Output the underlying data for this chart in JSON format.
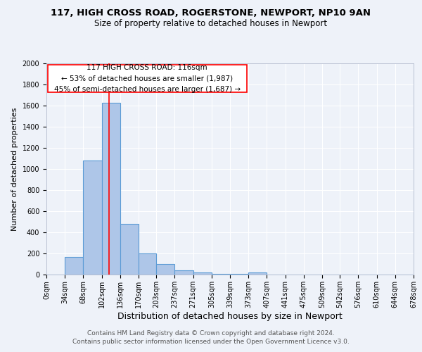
{
  "title1": "117, HIGH CROSS ROAD, ROGERSTONE, NEWPORT, NP10 9AN",
  "title2": "Size of property relative to detached houses in Newport",
  "xlabel": "Distribution of detached houses by size in Newport",
  "ylabel": "Number of detached properties",
  "footnote1": "Contains HM Land Registry data © Crown copyright and database right 2024.",
  "footnote2": "Contains public sector information licensed under the Open Government Licence v3.0.",
  "bin_edges": [
    0,
    34,
    68,
    102,
    136,
    170,
    203,
    237,
    271,
    305,
    339,
    373,
    407,
    441,
    475,
    509,
    542,
    576,
    610,
    644,
    678
  ],
  "bin_labels": [
    "0sqm",
    "34sqm",
    "68sqm",
    "102sqm",
    "136sqm",
    "170sqm",
    "203sqm",
    "237sqm",
    "271sqm",
    "305sqm",
    "339sqm",
    "373sqm",
    "407sqm",
    "441sqm",
    "475sqm",
    "509sqm",
    "542sqm",
    "576sqm",
    "610sqm",
    "644sqm",
    "678sqm"
  ],
  "bar_heights": [
    0,
    170,
    1080,
    1630,
    480,
    200,
    100,
    40,
    20,
    5,
    5,
    20,
    0,
    0,
    0,
    0,
    0,
    0,
    0,
    0
  ],
  "bar_color": "#aec6e8",
  "bar_edge_color": "#5b9bd5",
  "red_line_x": 116,
  "annotation_box_text": "117 HIGH CROSS ROAD: 116sqm\n← 53% of detached houses are smaller (1,987)\n45% of semi-detached houses are larger (1,687) →",
  "ylim": [
    0,
    2000
  ],
  "background_color": "#eef2f9",
  "grid_color": "#ffffff",
  "title1_fontsize": 9.5,
  "title2_fontsize": 8.5,
  "xlabel_fontsize": 9,
  "ylabel_fontsize": 8,
  "tick_fontsize": 7,
  "annotation_fontsize": 7.5,
  "footnote_fontsize": 6.5
}
